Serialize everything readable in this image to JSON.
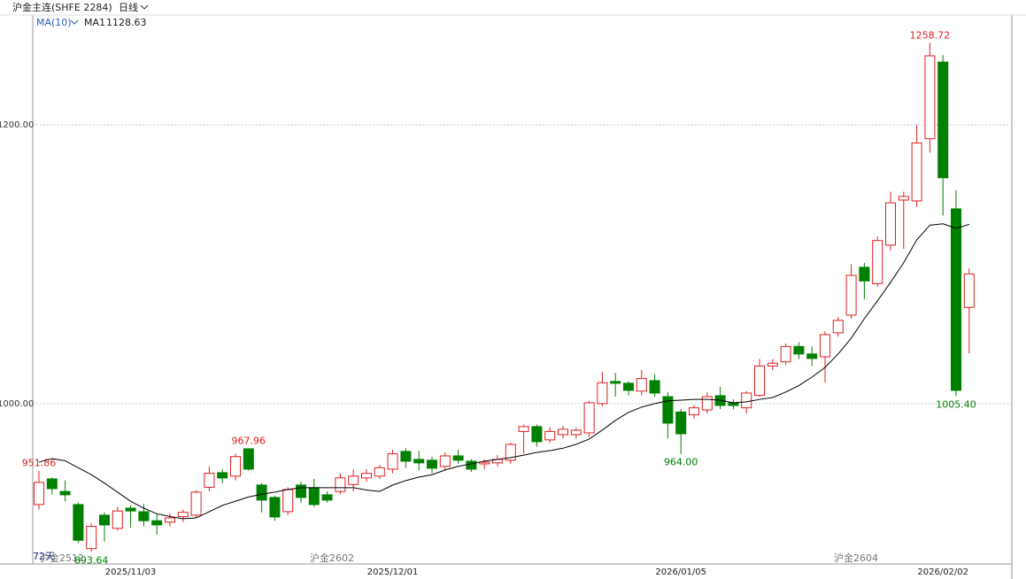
{
  "chart_data": {
    "type": "candlestick",
    "title": "沪金主连(SHFE 2284)",
    "period": "日线",
    "bar_count_label": "72天",
    "contract_labels": [
      "沪金2512",
      "沪金2602",
      "沪金2604"
    ],
    "up_color": "#e02020",
    "down_color": "#008000",
    "ma": {
      "period_label": "MA(10)",
      "name": "MA1",
      "last_label": "1128.63",
      "color": "#000000",
      "values": [
        958,
        960.6,
        959,
        954,
        949,
        943,
        936.5,
        930,
        925,
        921,
        919,
        917.5,
        918,
        922.5,
        927,
        930,
        933,
        935,
        936.5,
        938.4,
        939.7,
        939.7,
        939.7,
        939.7,
        939.7,
        938,
        937,
        941.6,
        944.8,
        947.3,
        949,
        952.4,
        955,
        956.8,
        958.7,
        960,
        961.3,
        963,
        965,
        966.3,
        968,
        970.8,
        974.6,
        981,
        988,
        993.7,
        997.5,
        1000,
        1002,
        1002.5,
        1003,
        1003,
        1002.5,
        1000.6,
        1001.3,
        1003,
        1004.4,
        1008.3,
        1013,
        1019,
        1026,
        1035.6,
        1047,
        1061,
        1073.7,
        1087,
        1101,
        1117.5,
        1128,
        1129,
        1125.7,
        1128.63
      ]
    },
    "categories": [
      null,
      null,
      null,
      null,
      null,
      null,
      null,
      "2025/11/03",
      null,
      null,
      null,
      null,
      null,
      null,
      null,
      null,
      null,
      null,
      null,
      null,
      null,
      null,
      null,
      null,
      null,
      null,
      null,
      "2025/12/01",
      null,
      null,
      null,
      null,
      null,
      null,
      null,
      null,
      null,
      null,
      null,
      null,
      null,
      null,
      null,
      null,
      null,
      null,
      null,
      null,
      null,
      "2026/01/05",
      null,
      null,
      null,
      null,
      null,
      null,
      null,
      null,
      null,
      null,
      null,
      null,
      null,
      null,
      null,
      null,
      null,
      null,
      null,
      "2026/02/02",
      null,
      null
    ],
    "open": [
      927.6,
      946,
      937,
      927.6,
      896,
      920,
      910.5,
      925,
      922.5,
      916,
      915,
      919,
      920,
      940,
      950.5,
      948,
      967.6,
      941.6,
      932.7,
      922.5,
      941.6,
      939.7,
      934.6,
      937,
      942,
      946.7,
      948,
      953,
      965.7,
      960,
      959.4,
      955,
      962.5,
      958.7,
      956.8,
      957.5,
      959.4,
      980,
      983.5,
      974,
      977.8,
      977.8,
      979,
      1000,
      1015.9,
      1014.6,
      1009,
      1016.5,
      1005,
      994,
      992,
      995.5,
      1005.7,
      1000.6,
      997,
      1006,
      1027,
      1030,
      1041,
      1035.6,
      1033.6,
      1050.8,
      1063.5,
      1097.8,
      1086,
      1113.7,
      1146,
      1145.4,
      1190,
      1245,
      1139.7,
      1069
    ],
    "high": [
      951.86,
      947,
      945,
      929,
      914,
      922,
      926,
      927,
      928,
      921,
      921,
      924,
      938,
      955,
      953,
      964,
      967.96,
      943,
      934,
      940,
      944,
      946,
      937,
      950,
      953,
      953,
      956,
      967,
      968,
      966,
      962,
      965,
      967,
      960,
      960,
      963,
      972,
      985,
      985,
      983,
      984,
      983,
      1002,
      1023,
      1022,
      1016,
      1024,
      1021,
      1008,
      996,
      999,
      1008,
      1012,
      1003,
      1009,
      1032,
      1032,
      1043,
      1044,
      1041,
      1052,
      1062,
      1100,
      1101,
      1120,
      1152,
      1152,
      1200,
      1258.72,
      1250,
      1153,
      1097
    ],
    "low": [
      924,
      935,
      930,
      900,
      893.64,
      901,
      909,
      911,
      912,
      906,
      912,
      915,
      918,
      937,
      943,
      945,
      952,
      922,
      916,
      920,
      929,
      926,
      929,
      935,
      937,
      944,
      946,
      950,
      954,
      952,
      950,
      952,
      957,
      951,
      953,
      955,
      957,
      964,
      969,
      972,
      975,
      975,
      976,
      998,
      1005,
      1006,
      1006,
      1005,
      975,
      964.0,
      989,
      993,
      996,
      996,
      993,
      1005,
      1024,
      1028,
      1032,
      1027,
      1015,
      1048,
      1061,
      1075,
      1084,
      1110,
      1111,
      1141,
      1180,
      1135,
      1005.4,
      1036
    ],
    "close": [
      943.5,
      939,
      934.6,
      902,
      912,
      913,
      923,
      923,
      916,
      913,
      918,
      922,
      936.5,
      950,
      946.7,
      962,
      953,
      930.8,
      918.7,
      938.4,
      932.7,
      927.6,
      930.8,
      946.7,
      948,
      950,
      954,
      964,
      958.7,
      957.5,
      953.7,
      962.5,
      959.4,
      953,
      958,
      960,
      970.8,
      983.5,
      972.7,
      980,
      981.6,
      981,
      1000.6,
      1015,
      1014.6,
      1009.5,
      1018,
      1007.6,
      986,
      978.4,
      997,
      1005,
      998.7,
      998.7,
      1007.6,
      1027,
      1029,
      1041,
      1035.6,
      1032.4,
      1049.5,
      1059.7,
      1092,
      1088,
      1117,
      1144,
      1148.6,
      1187,
      1249.5,
      1162,
      1009.5,
      1093
    ],
    "high_labels": [
      "951.86",
      null,
      null,
      null,
      null,
      null,
      null,
      null,
      null,
      null,
      null,
      null,
      null,
      null,
      null,
      null,
      "967.96",
      null,
      null,
      null,
      null,
      null,
      null,
      null,
      null,
      null,
      null,
      null,
      null,
      null,
      null,
      null,
      null,
      null,
      null,
      null,
      null,
      null,
      null,
      null,
      null,
      null,
      null,
      null,
      null,
      null,
      null,
      null,
      null,
      null,
      null,
      null,
      null,
      null,
      null,
      null,
      null,
      null,
      null,
      null,
      null,
      null,
      null,
      null,
      null,
      null,
      null,
      null,
      "1258.72",
      null,
      null,
      null
    ],
    "low_labels": [
      null,
      null,
      null,
      null,
      "893.64",
      null,
      null,
      null,
      null,
      null,
      null,
      null,
      null,
      null,
      null,
      null,
      null,
      null,
      null,
      null,
      null,
      null,
      null,
      null,
      null,
      null,
      null,
      null,
      null,
      null,
      null,
      null,
      null,
      null,
      null,
      null,
      null,
      null,
      null,
      null,
      null,
      null,
      null,
      null,
      null,
      null,
      null,
      null,
      null,
      "964.00",
      null,
      null,
      null,
      null,
      null,
      null,
      null,
      null,
      null,
      null,
      null,
      null,
      null,
      null,
      null,
      null,
      null,
      null,
      null,
      null,
      "1005.40",
      null
    ],
    "ylim": [
      885,
      1280
    ],
    "yticks": [
      {
        "value": 1000,
        "label": "1000.00"
      },
      {
        "value": 1200,
        "label": "1200.00"
      }
    ],
    "grid": true
  }
}
